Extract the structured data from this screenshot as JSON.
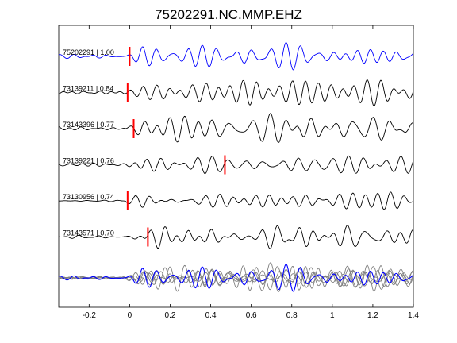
{
  "chart_data": {
    "type": "line",
    "title": "75202291.NC.MMP.EHZ",
    "xlabel": "",
    "ylabel": "",
    "xlim": [
      -0.35,
      1.4
    ],
    "x_ticks": [
      -0.2,
      0,
      0.2,
      0.4,
      0.6,
      0.8,
      1,
      1.2,
      1.4
    ],
    "x_tick_labels": [
      "-0.2",
      "0",
      "0.2",
      "0.4",
      "0.6",
      "0.8",
      "1",
      "1.2",
      "1.4"
    ],
    "grid": false,
    "traces": [
      {
        "label": "75202291 | 1.00",
        "pick_time": 0.0,
        "color": "#0000ff"
      },
      {
        "label": "73139211 | 0.84",
        "pick_time": -0.01,
        "color": "#000000"
      },
      {
        "label": "73143396 | 0.77",
        "pick_time": 0.02,
        "color": "#000000"
      },
      {
        "label": "73139221 | 0.76",
        "pick_time": 0.47,
        "color": "#000000"
      },
      {
        "label": "73130956 | 0.74",
        "pick_time": -0.01,
        "color": "#000000"
      },
      {
        "label": "73143571 | 0.70",
        "pick_time": 0.09,
        "color": "#000000"
      }
    ],
    "stack": {
      "reference_color": "#0000ff",
      "overlay_color": "#808080"
    },
    "pick_color": "#ff0000"
  }
}
